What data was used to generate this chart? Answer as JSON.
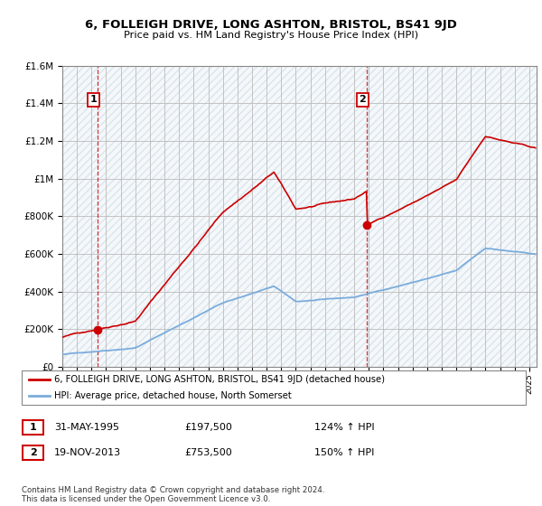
{
  "title": "6, FOLLEIGH DRIVE, LONG ASHTON, BRISTOL, BS41 9JD",
  "subtitle": "Price paid vs. HM Land Registry's House Price Index (HPI)",
  "legend_line1": "6, FOLLEIGH DRIVE, LONG ASHTON, BRISTOL, BS41 9JD (detached house)",
  "legend_line2": "HPI: Average price, detached house, North Somerset",
  "transaction1_date": "31-MAY-1995",
  "transaction1_price": "£197,500",
  "transaction1_hpi": "124% ↑ HPI",
  "transaction1_year": 1995.42,
  "transaction1_value": 197500,
  "transaction2_date": "19-NOV-2013",
  "transaction2_price": "£753,500",
  "transaction2_hpi": "150% ↑ HPI",
  "transaction2_year": 2013.88,
  "transaction2_value": 753500,
  "footer": "Contains HM Land Registry data © Crown copyright and database right 2024.\nThis data is licensed under the Open Government Licence v3.0.",
  "ylim": [
    0,
    1600000
  ],
  "xlim_start": 1993.0,
  "xlim_end": 2025.5,
  "red_color": "#cc0000",
  "blue_color": "#7aacdc",
  "bg_blue": "#e8f0f8",
  "grid_color": "#bbbbbb"
}
